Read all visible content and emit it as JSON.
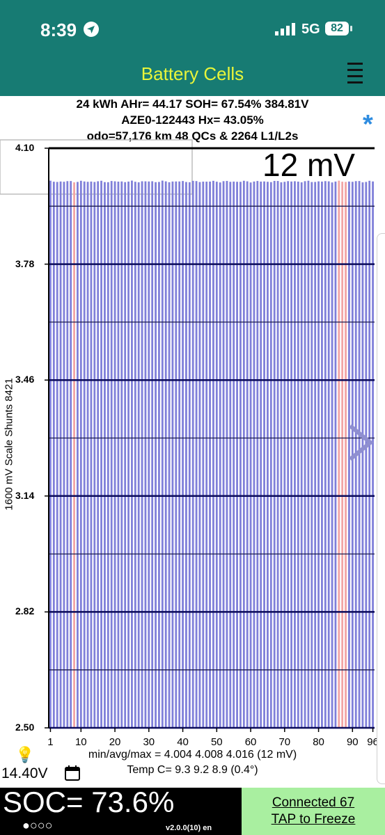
{
  "status_bar": {
    "time": "8:39",
    "network": "5G",
    "battery": "82"
  },
  "header": {
    "title": "Battery Cells"
  },
  "summary": {
    "line1": "24 kWh  AHr= 44.17  SOH= 67.54%   384.81V",
    "line2": "AZE0-122443   Hx= 43.05%",
    "line3": "odo=57,176 km 48 QCs & 2264 L1/L2s"
  },
  "scale_label": "12 mV",
  "chart_data": {
    "type": "bar",
    "ylabel": "1600 mV Scale    Shunts 8421",
    "ylim": [
      2.5,
      4.1
    ],
    "yticks": [
      "4.10",
      "3.78",
      "3.46",
      "3.14",
      "2.82",
      "2.50"
    ],
    "xticks": [
      "1",
      "10",
      "20",
      "30",
      "40",
      "50",
      "60",
      "70",
      "80",
      "90",
      "96"
    ],
    "cell_count": 96,
    "min": 4.004,
    "avg": 4.008,
    "max": 4.016,
    "shunted_cells": [
      8,
      86,
      87,
      88
    ],
    "bar_color": "#7f7fd9",
    "shunt_color": "#f2a4a4",
    "grid": true
  },
  "stats": {
    "minavgmax": "min/avg/max = 4.004 4.008 4.016  (12 mV)",
    "temp": "Temp C= 9.3  9.2  8.9  (0.4°)"
  },
  "footer": {
    "voltage": "14.40V",
    "soc": "SOC= 73.6%",
    "dots": "●○○○",
    "version": "v2.0.0(10) en",
    "connected": "Connected 67",
    "tap": "TAP to Freeze"
  },
  "colors": {
    "header_bg": "#177b73",
    "title": "#e8f53a",
    "connect_bg": "#a9efa0"
  },
  "icons": [
    "location-arrow-icon",
    "signal-icon",
    "menu-icon",
    "star-icon",
    "bulb-icon",
    "calendar-icon",
    "chevron-right-icon"
  ]
}
